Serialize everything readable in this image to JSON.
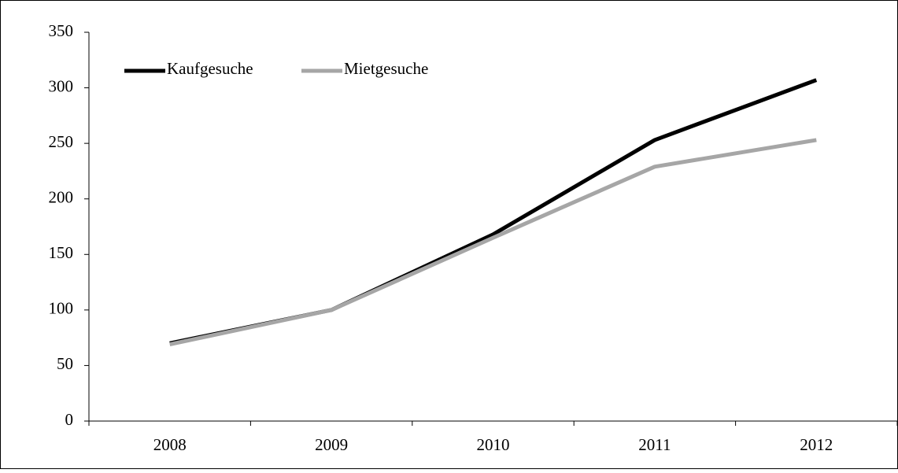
{
  "chart_data": {
    "type": "line",
    "categories": [
      "2008",
      "2009",
      "2010",
      "2011",
      "2012"
    ],
    "series": [
      {
        "name": "Kaufgesuche",
        "color": "#000000",
        "values": [
          70,
          100,
          168,
          253,
          307
        ]
      },
      {
        "name": "Mietgesuche",
        "color": "#a6a6a6",
        "values": [
          69,
          100,
          165,
          229,
          253
        ]
      }
    ],
    "ylim": [
      0,
      350
    ],
    "yticks": [
      0,
      50,
      100,
      150,
      200,
      250,
      300,
      350
    ],
    "grid": false,
    "legend": "top-left"
  }
}
